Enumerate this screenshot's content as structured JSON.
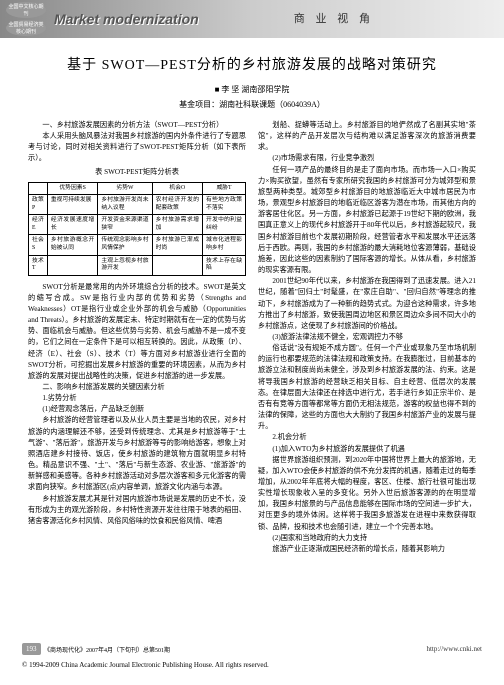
{
  "banner": {
    "badge_line1": "全国中文核心期刊",
    "badge_line2": "全国贸易经济类核心期刊",
    "title_en": "Market modernization",
    "section": "商 业 视 角"
  },
  "article": {
    "title": "基于 SWOT—PEST分析的乡村旅游发展的战略对策研究",
    "author_mark": "■",
    "author": "李 坚  湖南邵阳学院",
    "fund": "基金项目：湖南社科联课题（0604039A）"
  },
  "left_col": {
    "p1_head": "一、乡村旅游发展因素的分析方法（SWOT—PEST分析）",
    "p1": "本人采用头脑风暴法对我国乡村旅游的国内外条件进行了专题思考与讨论，同时对相关资料进行了SWOT-PEST矩阵分析（如下表所示）。",
    "table_caption": "表    SWOT-PEST矩阵分析表",
    "table": {
      "headers": [
        "",
        "优势因素S",
        "劣势W",
        "机会O",
        "威胁T"
      ],
      "rows": [
        [
          "政策P",
          "重视可持续发展",
          "乡村旅游开发尚未纳入议程",
          "农村经济开发的配套政策",
          "有些地方政策不落实"
        ],
        [
          "经济E",
          "经济发展速度增长",
          "开发资金来源渠道狭窄",
          "乡村旅游需求增加",
          "开发中的利益纠纷"
        ],
        [
          "社会S",
          "乡村旅游概念开始被认同",
          "传统观念影响乡村风情保护",
          "乡村旅游已渐成时尚",
          "城市化进程影响乡村"
        ],
        [
          "技术T",
          "",
          "主观上忽视乡村旅游开发",
          "",
          "技术上存在缺陷"
        ]
      ]
    },
    "p2": "SWOT分析是最常用的内外环境综合分析的技术。SWOT是英文的缩写合成。SW是指行业内部的优势和劣势（Strengths and Weaknesses）OT是指行业或企业外部的机会与威胁（Opportunities and Threats）。乡村旅游的发展定未、特定时期就有在一定的优势与劣势、面临机会与威胁。但这些优势与劣势、机会与威胁不是一成不变的，它们之间在一定条件下是可以相互转换的。因此，从政策（P）、经济（E）、社会（S）、技术（T）等方面对乡村旅游业进行全面的SWOT分析，可挖掘出发展乡村旅游的重要的环境因素，从而为乡村旅游的发展对提出战略性的决策，促进乡村旅游的进一步发展。",
    "p3_head": "二、影响乡村旅游发展的关键因素分析",
    "p3_sub1": "1.劣势分析",
    "p3_sub1_1": "(1)经营观念落后，产品缺乏创新",
    "p4": "乡村旅游的经营管理者以及从业人员主要是当地的农民，对乡村旅游的内涵理解还不够，还受到传统理念、尤其是乡村旅游等于\"土气游\"、\"落后游\"，旅游开发与乡村旅游等号的影响给游客，想象上对照酒店建乡村接待、饭店，使乡村旅游的建筑物方面就明显乡村特色。精品意识不强、\"土\"、\"落后\"与新生态游、农业游、\"旅游游\"的新鲜感和美感等。各种乡村旅游活动对多层次游客和多元化游客的需求面向狭窄。乡村旅游区(点)内容单调，旅游文化内涵与本源。",
    "p5": "乡村旅游发展尤其是针对国内旅游市场说是发展的历史不长，没有形成为主的观光游阶段，乡村特性资源开发往往限于地表的稻田、猪舍客源活化乡村风情、风俗风俗味的饮食和民俗风情、啤酒"
  },
  "right_col": {
    "p1": "划船、捉蟒等活动上。乡村旅游目的地俨然成了名副其实地\"茶馆\"，这样的产品开发层次与结构难以满足游客深次的旅游消费要求。",
    "p2_head": "(2)市场需求有限，行业竞争激烈",
    "p2": "任何一项产品的最终目的是走了面向市场。而市场一入口×购买力×购买欲望，虽然有专家所研究我国的乡村旅游可分为城郊型和景旅型两种类型。城郊型乡村旅游目的地旅游临近大中城市居民为市场，景观型乡村旅游目的地临近临区游客为潜在市场，而其他方向的游客居住化区。另一方面，乡村旅游已起源于19世纪下期的欧洲，我国真正意义上的现代乡村旅游开于80年代以后，乡村旅游起较尺，我国乡村旅游目前也个发展初期阶段，经营管者水平和发展水平还远落后于西欧。再则，我国的乡村旅游的最大消耗地位客源薄弱，基础设施差，因此这些的因素制约了国际客源的增长。从体从看，乡村旅游的现实客源有限。",
    "p3": "2001世纪90年代以来，乡村旅游在我国得到了迅速发展。进入21世纪，随着\"回归土\"时髦盛，在\"家庄自助\"、\"回归自然\"等理念的推动下，乡村旅游成为了一种新的趋势式式。为迎合这种需求，许多地方推出了乡村旅游，致使我国周边地区和景区周边众多间不同大小的乡村旅游点，这使现了乡村旅游间的价格战。",
    "p4_head": "(3)旅游法律法规不健全，宏观调控力不够",
    "p4": "俗话说\"没有规矩不成方圆\"。任何一个产业或现象乃至市场机制的运行也都要规范的法律法规和政策支持。在我膨胀过，目前基本的旅游立法和制度尚尚未健全，涉及到乡村旅游发展的法、约束。这是将导我国乡村旅游的经营缺乏相关目标、自主经营、低层次的发展态。在律层面大法律还在排选中进行尤，若手进行乡如正宗半价、是否有有竞等方面等都常等方面仍无相法规范，游客的权益也得不到的法律的保障，这些的方面也大大制约了我国乡村旅游产业的发展与提升。",
    "p5_head": "2.机会分析",
    "p5_sub": "(1)加入WTO为乡村旅游的发展提供了机遇",
    "p6": "据世界旅游组织预测，到2020年中国将世界上最大的旅游地，无疑，加入WTO会使乡村旅游的供不充分发挥的机遇，随着走过的每季增加，从2002年年底将大幅的程度，客区、住楼、旅行社很可能出现实性增长现象收入呈的多变化。另外入世后旅游客源的的在明显增加，我国乡村旅景的与产品信息能够在国际市场的空间进一步扩大，对压更多的境外体闲。这样将于我国多旅游发在进程中来数获得取锁、品牌，投和技术也会随引进，建立一个个完善本地。",
    "p7_head": "(2)国家和当地政府的大力支持",
    "p7": "旅游产业正逐渐成国民经济新的增长点，随着其影响力"
  },
  "footer": {
    "page": "193",
    "pub": "《商场现代化》2007年4月（下旬刊）总第501期",
    "copyright": "© 1994-2009 China Academic Journal Electronic Publishing House. All rights reserved.",
    "link": "http://www.cnki.net"
  }
}
